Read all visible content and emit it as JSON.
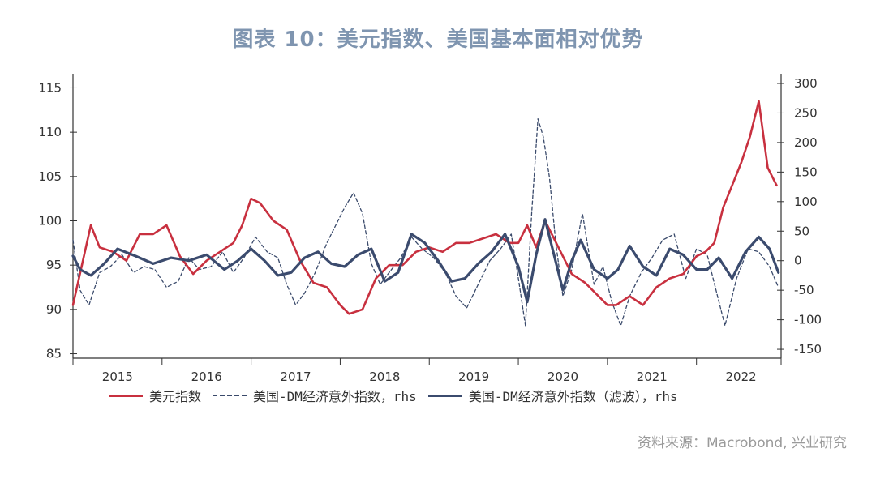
{
  "title": "图表 10：美元指数、美国基本面相对优势",
  "source": "资料来源：Macrobond, 兴业研究",
  "colors": {
    "usd": "#c8303f",
    "surprise": "#3a4a6b",
    "filtered": "#3b4b6e",
    "axis": "#333333"
  },
  "chart_data": {
    "type": "line",
    "title": "图表 10：美元指数、美国基本面相对优势",
    "x_tick_labels": [
      "2015",
      "2016",
      "2017",
      "2018",
      "2019",
      "2020",
      "2021",
      "2022"
    ],
    "xlim": [
      2015.0,
      2022.95
    ],
    "y_left": {
      "ticks": [
        85,
        90,
        95,
        100,
        105,
        110,
        115
      ],
      "ylim": [
        84.5,
        115.5
      ]
    },
    "y_right": {
      "ticks": [
        300,
        250,
        200,
        150,
        100,
        50,
        0,
        -50,
        -100,
        -150
      ],
      "ylim": [
        -165,
        300
      ]
    },
    "legend_placement": "bottom",
    "series": [
      {
        "name": "美元指数",
        "axis": "left",
        "style": "solid-red",
        "x": [
          2015.0,
          2015.1,
          2015.2,
          2015.3,
          2015.45,
          2015.6,
          2015.75,
          2015.9,
          2016.05,
          2016.2,
          2016.35,
          2016.5,
          2016.65,
          2016.8,
          2016.9,
          2017.0,
          2017.1,
          2017.25,
          2017.4,
          2017.55,
          2017.7,
          2017.85,
          2018.0,
          2018.1,
          2018.25,
          2018.4,
          2018.55,
          2018.7,
          2018.85,
          2019.0,
          2019.15,
          2019.3,
          2019.45,
          2019.6,
          2019.75,
          2019.9,
          2020.0,
          2020.1,
          2020.2,
          2020.3,
          2020.45,
          2020.6,
          2020.75,
          2020.9,
          2021.0,
          2021.1,
          2021.25,
          2021.4,
          2021.55,
          2021.7,
          2021.85,
          2022.0,
          2022.1,
          2022.2,
          2022.3,
          2022.4,
          2022.5,
          2022.6,
          2022.7,
          2022.8,
          2022.9
        ],
        "values": [
          90.5,
          95,
          99.5,
          97,
          96.5,
          95.5,
          98.5,
          98.5,
          99.5,
          96,
          94,
          95.5,
          96.5,
          97.5,
          99.5,
          102.5,
          102,
          100,
          99,
          95.5,
          93,
          92.5,
          90.5,
          89.5,
          90,
          93.5,
          95,
          95,
          96.5,
          97,
          96.5,
          97.5,
          97.5,
          98,
          98.5,
          97.5,
          97.5,
          99.5,
          97,
          100,
          97,
          94,
          93,
          91.5,
          90.5,
          90.5,
          91.5,
          90.5,
          92.5,
          93.5,
          94,
          96,
          96.5,
          97.5,
          101.5,
          104,
          106.5,
          109.5,
          113.5,
          106,
          104
        ]
      },
      {
        "name": "美国-DM经济意外指数，rhs",
        "axis": "right",
        "style": "dashed-navy",
        "x": [
          2015.0,
          2015.08,
          2015.18,
          2015.3,
          2015.42,
          2015.55,
          2015.68,
          2015.8,
          2015.92,
          2016.05,
          2016.18,
          2016.3,
          2016.42,
          2016.55,
          2016.68,
          2016.8,
          2016.92,
          2017.05,
          2017.18,
          2017.3,
          2017.4,
          2017.5,
          2017.6,
          2017.72,
          2017.85,
          2017.95,
          2018.05,
          2018.15,
          2018.25,
          2018.35,
          2018.45,
          2018.55,
          2018.68,
          2018.8,
          2018.92,
          2019.05,
          2019.18,
          2019.3,
          2019.42,
          2019.55,
          2019.68,
          2019.8,
          2019.92,
          2020.0,
          2020.08,
          2020.15,
          2020.22,
          2020.28,
          2020.35,
          2020.42,
          2020.5,
          2020.6,
          2020.72,
          2020.85,
          2020.95,
          2021.05,
          2021.15,
          2021.25,
          2021.38,
          2021.5,
          2021.62,
          2021.75,
          2021.88,
          2022.0,
          2022.12,
          2022.22,
          2022.32,
          2022.45,
          2022.58,
          2022.7,
          2022.82,
          2022.92
        ],
        "values": [
          35,
          -50,
          -75,
          -20,
          -10,
          10,
          -20,
          -10,
          -15,
          -45,
          -35,
          5,
          -15,
          -10,
          15,
          -20,
          5,
          40,
          15,
          5,
          -40,
          -75,
          -55,
          -20,
          30,
          60,
          90,
          115,
          80,
          -5,
          -40,
          -20,
          5,
          40,
          20,
          5,
          -20,
          -60,
          -80,
          -40,
          0,
          20,
          45,
          -30,
          -110,
          80,
          240,
          210,
          140,
          30,
          -60,
          -15,
          80,
          -40,
          -10,
          -70,
          -110,
          -60,
          -20,
          5,
          35,
          45,
          -30,
          20,
          10,
          -50,
          -110,
          -30,
          20,
          15,
          -10,
          -45
        ]
      },
      {
        "name": "美国-DM经济意外指数（滤波），rhs",
        "axis": "right",
        "style": "solid-navy",
        "x": [
          2015.0,
          2015.08,
          2015.2,
          2015.35,
          2015.5,
          2015.7,
          2015.9,
          2016.1,
          2016.3,
          2016.5,
          2016.7,
          2016.85,
          2017.0,
          2017.15,
          2017.3,
          2017.45,
          2017.6,
          2017.75,
          2017.9,
          2018.05,
          2018.2,
          2018.35,
          2018.5,
          2018.65,
          2018.8,
          2018.95,
          2019.1,
          2019.25,
          2019.4,
          2019.55,
          2019.7,
          2019.85,
          2020.0,
          2020.1,
          2020.2,
          2020.3,
          2020.4,
          2020.5,
          2020.6,
          2020.7,
          2020.85,
          2021.0,
          2021.12,
          2021.25,
          2021.4,
          2021.55,
          2021.7,
          2021.85,
          2022.0,
          2022.12,
          2022.25,
          2022.4,
          2022.55,
          2022.7,
          2022.82,
          2022.92
        ],
        "values": [
          8,
          -15,
          -25,
          -5,
          20,
          8,
          -5,
          5,
          0,
          10,
          -15,
          0,
          20,
          0,
          -25,
          -20,
          5,
          15,
          -5,
          -10,
          10,
          20,
          -35,
          -20,
          45,
          30,
          0,
          -35,
          -30,
          -5,
          15,
          45,
          -10,
          -70,
          10,
          70,
          10,
          -50,
          0,
          35,
          -15,
          -30,
          -15,
          25,
          -10,
          -25,
          20,
          10,
          -15,
          -15,
          5,
          -30,
          15,
          40,
          20,
          -20
        ]
      }
    ]
  }
}
